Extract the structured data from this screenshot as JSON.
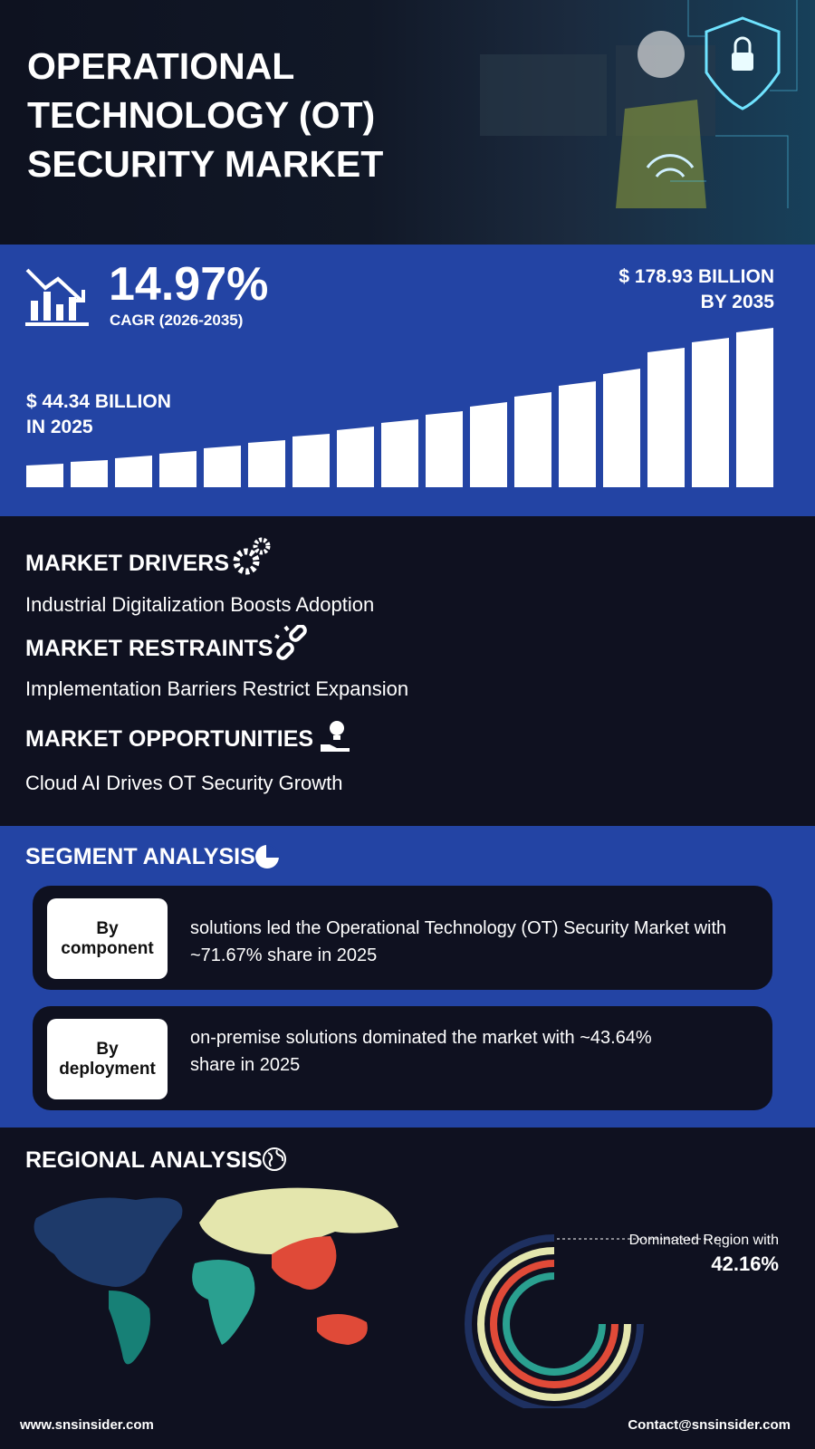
{
  "header": {
    "title": "OPERATIONAL TECHNOLOGY (OT) SECURITY MARKET"
  },
  "stats": {
    "cagr_value": "14.97%",
    "cagr_label": "CAGR (2026-2035)",
    "end_value": "$ 178.93 BILLION",
    "end_year": "BY 2035",
    "start_value": "$ 44.34 BILLION",
    "start_year": "IN 2025"
  },
  "insights": [
    {
      "heading": "MARKET DRIVERS",
      "text": "Industrial Digitalization Boosts Adoption"
    },
    {
      "heading": "MARKET RESTRAINTS",
      "text": "Implementation Barriers Restrict Expansion"
    },
    {
      "heading": "MARKET OPPORTUNITIES",
      "text": "Cloud AI Drives OT Security Growth"
    }
  ],
  "segment": {
    "heading": "SEGMENT ANALYSIS",
    "items": [
      {
        "label": "By component",
        "text": "solutions led the Operational Technology (OT) Security Market with ~71.67% share in 2025"
      },
      {
        "label": "By deployment",
        "text": "on-premise solutions dominated the market with ~43.64% share in 2025"
      }
    ]
  },
  "regional": {
    "heading": "REGIONAL ANALYSIS",
    "note": "Dominated Region with",
    "share": "42.16%"
  },
  "footer": {
    "website": "www.snsinsider.com",
    "contact": "Contact@snsinsider.com"
  }
}
